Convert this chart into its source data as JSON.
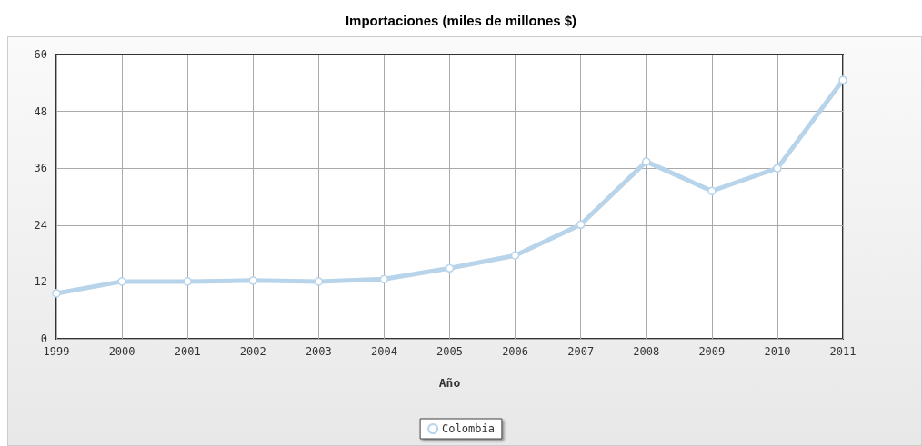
{
  "chart_data": {
    "type": "line",
    "title": "Importaciones (miles de millones $)",
    "xlabel": "Año",
    "categories": [
      "1999",
      "2000",
      "2001",
      "2002",
      "2003",
      "2004",
      "2005",
      "2006",
      "2007",
      "2008",
      "2009",
      "2010",
      "2011"
    ],
    "series": [
      {
        "name": "Colombia",
        "color": "#b8d4ea",
        "values": [
          9.6,
          12.1,
          12.1,
          12.3,
          12.1,
          12.6,
          14.9,
          17.6,
          24.1,
          37.4,
          31.2,
          36.0,
          54.6
        ]
      }
    ],
    "ylim": [
      0,
      60
    ],
    "yticks": [
      0,
      12,
      24,
      36,
      48,
      60
    ],
    "grid": true,
    "legend": "bottom",
    "marker": "circle",
    "line_style": "solid"
  }
}
